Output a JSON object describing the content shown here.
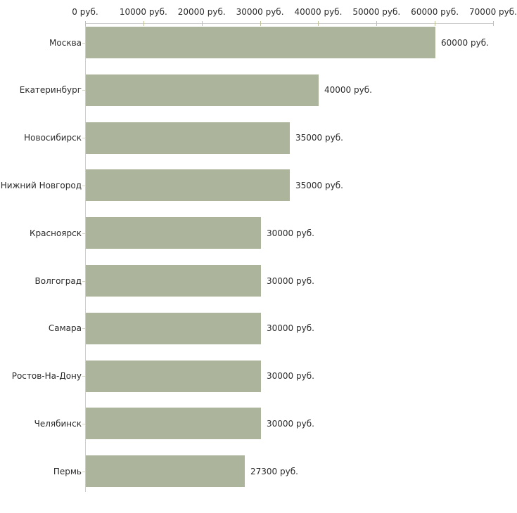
{
  "chart_data": {
    "type": "bar",
    "orientation": "horizontal",
    "title": "",
    "xlabel": "",
    "ylabel": "",
    "legend": "none",
    "grid": "off",
    "categories": [
      "Москва",
      "Екатеринбург",
      "Новосибирск",
      "Нижний Новгород",
      "Красноярск",
      "Волгоград",
      "Самара",
      "Ростов-На-Дону",
      "Челябинск",
      "Пермь"
    ],
    "values": [
      60000,
      40000,
      35000,
      35000,
      30000,
      30000,
      30000,
      30000,
      30000,
      27300
    ],
    "value_labels": [
      "60000 руб.",
      "40000 руб.",
      "35000 руб.",
      "35000 руб.",
      "30000 руб.",
      "30000 руб.",
      "30000 руб.",
      "30000 руб.",
      "30000 руб.",
      "27300 руб."
    ],
    "x_axis": {
      "position": "top",
      "min": 0,
      "max": 70000,
      "tick_interval": 10000,
      "tick_values": [
        0,
        10000,
        20000,
        30000,
        40000,
        50000,
        60000,
        70000
      ],
      "tick_labels": [
        "0 руб.",
        "10000 руб.",
        "20000 руб.",
        "30000 руб.",
        "40000 руб.",
        "50000 руб.",
        "60000 руб.",
        "70000 руб."
      ]
    }
  },
  "colors": {
    "bar": "#adb49c",
    "axis_line": "#cccccc",
    "axis_tick": "#c2c29a",
    "category_tick": "#d4d4c0",
    "text": "#2b2b2b",
    "background": "#ffffff"
  }
}
